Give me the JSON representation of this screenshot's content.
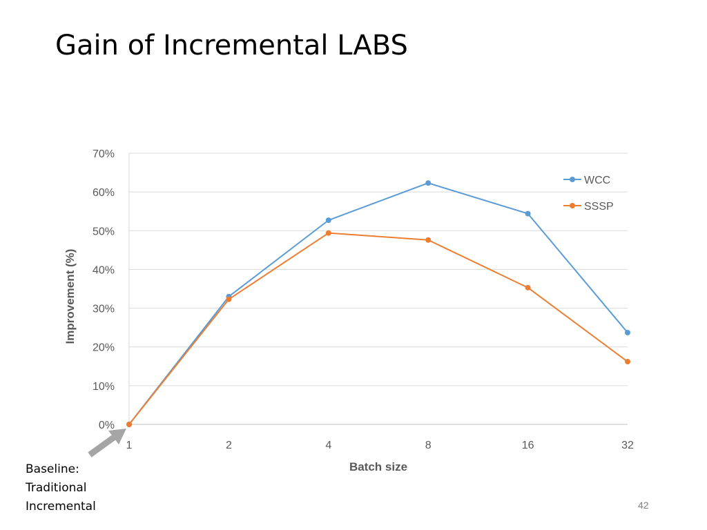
{
  "slide": {
    "title": "Gain of Incremental LABS",
    "page_number": "42",
    "baseline_note": [
      "Baseline:",
      "Traditional",
      "Incremental"
    ]
  },
  "chart_data": {
    "type": "line",
    "categories": [
      "1",
      "2",
      "4",
      "8",
      "16",
      "32"
    ],
    "series": [
      {
        "name": "WCC",
        "color": "#5b9bd5",
        "values": [
          0,
          33,
          52.7,
          62.3,
          54.4,
          23.7
        ]
      },
      {
        "name": "SSSP",
        "color": "#ed7d31",
        "values": [
          0,
          32.3,
          49.4,
          47.6,
          35.3,
          16.2
        ]
      }
    ],
    "title": "",
    "xlabel": "Batch size",
    "ylabel": "Improvement (%)",
    "ylim": [
      0,
      70
    ],
    "yticks": [
      "0%",
      "10%",
      "20%",
      "30%",
      "40%",
      "50%",
      "60%",
      "70%"
    ],
    "grid": true,
    "legend": "top-right",
    "annotation_arrow_color": "#a5a5a5"
  }
}
